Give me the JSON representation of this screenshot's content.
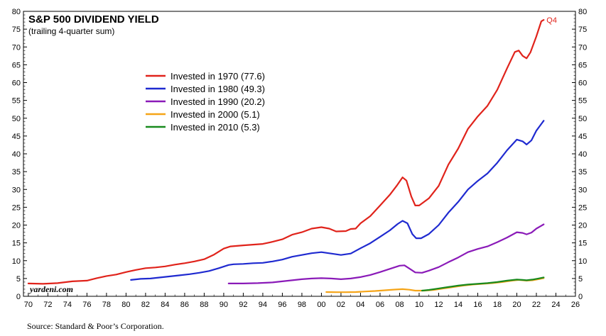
{
  "chart_data": {
    "type": "line",
    "title": "S&P 500 DIVIDEND YIELD",
    "subtitle": "(trailing 4-quarter sum)",
    "xlabel": "",
    "ylabel": "",
    "xlim": [
      1969.5,
      2026
    ],
    "ylim": [
      0,
      80
    ],
    "x_ticks": [
      "70",
      "72",
      "74",
      "76",
      "78",
      "80",
      "82",
      "84",
      "86",
      "88",
      "90",
      "92",
      "94",
      "96",
      "98",
      "00",
      "02",
      "04",
      "06",
      "08",
      "10",
      "12",
      "14",
      "16",
      "18",
      "20",
      "22",
      "24",
      "26"
    ],
    "y_ticks": [
      0,
      5,
      10,
      15,
      20,
      25,
      30,
      35,
      40,
      45,
      50,
      55,
      60,
      65,
      70,
      75,
      80
    ],
    "grid": false,
    "legend_position": "upper-left-center",
    "annotation": {
      "text": "Q4",
      "x": 2022.75,
      "y": 77.6,
      "color": "#e0231b"
    },
    "series": [
      {
        "name": "Invested in 1970 (77.6)",
        "color": "#e0231b",
        "points": [
          [
            1970.0,
            3.6
          ],
          [
            1971.5,
            3.5
          ],
          [
            1973.0,
            3.7
          ],
          [
            1974.5,
            4.2
          ],
          [
            1976.0,
            4.4
          ],
          [
            1977.0,
            5.1
          ],
          [
            1978.0,
            5.7
          ],
          [
            1979.0,
            6.1
          ],
          [
            1980.0,
            6.8
          ],
          [
            1981.0,
            7.4
          ],
          [
            1982.0,
            7.9
          ],
          [
            1983.0,
            8.1
          ],
          [
            1984.0,
            8.4
          ],
          [
            1985.0,
            8.9
          ],
          [
            1986.0,
            9.3
          ],
          [
            1987.0,
            9.8
          ],
          [
            1988.0,
            10.4
          ],
          [
            1989.0,
            11.7
          ],
          [
            1990.0,
            13.4
          ],
          [
            1990.7,
            14.0
          ],
          [
            1992.0,
            14.3
          ],
          [
            1994.0,
            14.7
          ],
          [
            1995.0,
            15.3
          ],
          [
            1996.0,
            16.0
          ],
          [
            1997.0,
            17.3
          ],
          [
            1998.0,
            18.0
          ],
          [
            1999.0,
            19.0
          ],
          [
            2000.0,
            19.4
          ],
          [
            2000.8,
            19.0
          ],
          [
            2001.5,
            18.2
          ],
          [
            2002.5,
            18.3
          ],
          [
            2003.0,
            18.9
          ],
          [
            2003.5,
            19.0
          ],
          [
            2004.0,
            20.5
          ],
          [
            2005.0,
            22.5
          ],
          [
            2006.0,
            25.5
          ],
          [
            2007.0,
            28.5
          ],
          [
            2007.7,
            31.0
          ],
          [
            2008.3,
            33.4
          ],
          [
            2008.7,
            32.5
          ],
          [
            2009.2,
            28.0
          ],
          [
            2009.6,
            25.5
          ],
          [
            2010.0,
            25.5
          ],
          [
            2011.0,
            27.5
          ],
          [
            2012.0,
            31.0
          ],
          [
            2013.0,
            37.0
          ],
          [
            2014.0,
            41.5
          ],
          [
            2015.0,
            47.0
          ],
          [
            2016.0,
            50.5
          ],
          [
            2017.0,
            53.5
          ],
          [
            2018.0,
            58.0
          ],
          [
            2019.0,
            64.0
          ],
          [
            2019.8,
            68.6
          ],
          [
            2020.2,
            69.0
          ],
          [
            2020.6,
            67.5
          ],
          [
            2021.0,
            66.8
          ],
          [
            2021.4,
            68.5
          ],
          [
            2022.0,
            73.0
          ],
          [
            2022.5,
            77.2
          ],
          [
            2022.75,
            77.6
          ]
        ]
      },
      {
        "name": "Invested in 1980 (49.3)",
        "color": "#1f2ad0",
        "points": [
          [
            1980.5,
            4.6
          ],
          [
            1981.5,
            4.9
          ],
          [
            1982.5,
            5.0
          ],
          [
            1983.5,
            5.3
          ],
          [
            1984.5,
            5.6
          ],
          [
            1985.5,
            5.9
          ],
          [
            1986.5,
            6.2
          ],
          [
            1987.5,
            6.6
          ],
          [
            1988.5,
            7.1
          ],
          [
            1989.5,
            7.9
          ],
          [
            1990.5,
            8.8
          ],
          [
            1991.0,
            9.0
          ],
          [
            1992.0,
            9.1
          ],
          [
            1993.0,
            9.3
          ],
          [
            1994.0,
            9.4
          ],
          [
            1995.0,
            9.8
          ],
          [
            1996.0,
            10.3
          ],
          [
            1997.0,
            11.1
          ],
          [
            1998.0,
            11.6
          ],
          [
            1999.0,
            12.1
          ],
          [
            2000.0,
            12.4
          ],
          [
            2001.0,
            12.0
          ],
          [
            2002.0,
            11.6
          ],
          [
            2003.0,
            12.0
          ],
          [
            2004.0,
            13.5
          ],
          [
            2005.0,
            14.9
          ],
          [
            2006.0,
            16.7
          ],
          [
            2007.0,
            18.5
          ],
          [
            2007.8,
            20.3
          ],
          [
            2008.3,
            21.2
          ],
          [
            2008.8,
            20.5
          ],
          [
            2009.3,
            17.5
          ],
          [
            2009.7,
            16.3
          ],
          [
            2010.2,
            16.3
          ],
          [
            2011.0,
            17.5
          ],
          [
            2012.0,
            20.0
          ],
          [
            2013.0,
            23.5
          ],
          [
            2014.0,
            26.5
          ],
          [
            2015.0,
            30.0
          ],
          [
            2016.0,
            32.4
          ],
          [
            2017.0,
            34.5
          ],
          [
            2018.0,
            37.5
          ],
          [
            2019.0,
            41.0
          ],
          [
            2020.0,
            44.0
          ],
          [
            2020.6,
            43.5
          ],
          [
            2021.0,
            42.6
          ],
          [
            2021.5,
            43.8
          ],
          [
            2022.0,
            46.5
          ],
          [
            2022.75,
            49.3
          ]
        ]
      },
      {
        "name": "Invested in 1990 (20.2)",
        "color": "#8a1ab8",
        "points": [
          [
            1990.5,
            3.6
          ],
          [
            1992.0,
            3.6
          ],
          [
            1993.5,
            3.7
          ],
          [
            1995.0,
            3.9
          ],
          [
            1996.0,
            4.2
          ],
          [
            1997.0,
            4.5
          ],
          [
            1998.0,
            4.8
          ],
          [
            1999.0,
            5.0
          ],
          [
            2000.0,
            5.1
          ],
          [
            2001.0,
            5.0
          ],
          [
            2002.0,
            4.8
          ],
          [
            2003.0,
            5.0
          ],
          [
            2004.0,
            5.4
          ],
          [
            2005.0,
            6.0
          ],
          [
            2006.0,
            6.8
          ],
          [
            2007.0,
            7.7
          ],
          [
            2008.0,
            8.6
          ],
          [
            2008.5,
            8.7
          ],
          [
            2009.0,
            7.8
          ],
          [
            2009.6,
            6.7
          ],
          [
            2010.3,
            6.6
          ],
          [
            2011.0,
            7.2
          ],
          [
            2012.0,
            8.2
          ],
          [
            2013.0,
            9.6
          ],
          [
            2014.0,
            10.9
          ],
          [
            2015.0,
            12.4
          ],
          [
            2016.0,
            13.3
          ],
          [
            2017.0,
            14.0
          ],
          [
            2018.0,
            15.2
          ],
          [
            2019.0,
            16.5
          ],
          [
            2020.0,
            18.0
          ],
          [
            2020.6,
            17.8
          ],
          [
            2021.0,
            17.4
          ],
          [
            2021.5,
            17.9
          ],
          [
            2022.0,
            19.0
          ],
          [
            2022.75,
            20.2
          ]
        ]
      },
      {
        "name": "Invested in 2000 (5.1)",
        "color": "#f5a417",
        "points": [
          [
            2000.5,
            1.2
          ],
          [
            2001.5,
            1.15
          ],
          [
            2002.5,
            1.15
          ],
          [
            2003.5,
            1.2
          ],
          [
            2004.5,
            1.35
          ],
          [
            2005.5,
            1.5
          ],
          [
            2006.5,
            1.7
          ],
          [
            2007.5,
            1.9
          ],
          [
            2008.3,
            2.0
          ],
          [
            2009.0,
            1.85
          ],
          [
            2009.6,
            1.6
          ],
          [
            2010.5,
            1.6
          ],
          [
            2011.5,
            1.8
          ],
          [
            2012.5,
            2.2
          ],
          [
            2013.5,
            2.6
          ],
          [
            2014.5,
            3.0
          ],
          [
            2015.5,
            3.3
          ],
          [
            2016.5,
            3.5
          ],
          [
            2017.5,
            3.7
          ],
          [
            2018.5,
            4.0
          ],
          [
            2019.5,
            4.4
          ],
          [
            2020.2,
            4.6
          ],
          [
            2021.0,
            4.4
          ],
          [
            2021.6,
            4.5
          ],
          [
            2022.2,
            4.8
          ],
          [
            2022.75,
            5.1
          ]
        ]
      },
      {
        "name": "Invested in 2010 (5.3)",
        "color": "#188a1e",
        "points": [
          [
            2010.3,
            1.6
          ],
          [
            2011.0,
            1.8
          ],
          [
            2012.0,
            2.2
          ],
          [
            2013.0,
            2.6
          ],
          [
            2014.0,
            3.0
          ],
          [
            2015.0,
            3.3
          ],
          [
            2016.0,
            3.5
          ],
          [
            2017.0,
            3.7
          ],
          [
            2018.0,
            4.0
          ],
          [
            2019.0,
            4.4
          ],
          [
            2020.0,
            4.7
          ],
          [
            2020.6,
            4.6
          ],
          [
            2021.0,
            4.5
          ],
          [
            2021.6,
            4.7
          ],
          [
            2022.2,
            5.0
          ],
          [
            2022.75,
            5.3
          ]
        ]
      }
    ]
  },
  "watermark": "yardeni.com",
  "source": "Source: Standard & Poor’s Corporation."
}
